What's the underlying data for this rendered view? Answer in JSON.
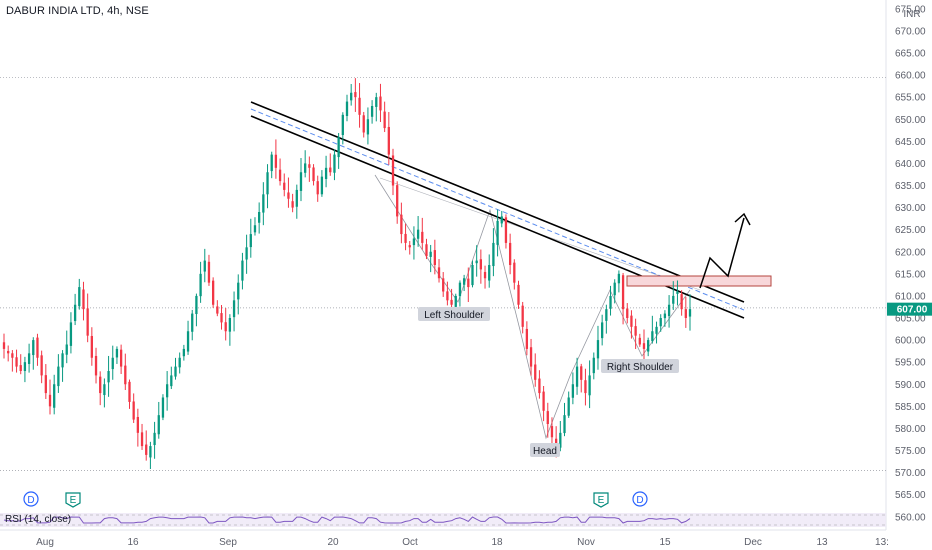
{
  "header": {
    "title": "DABUR INDIA LTD, 4h, NSE"
  },
  "currency": "INR",
  "colors": {
    "up": "#089981",
    "down": "#f23645",
    "last_price_bg": "#089981",
    "rsi_line": "#7e57c2"
  },
  "chart_data": {
    "type": "candlestick",
    "symbol": "DABUR INDIA LTD",
    "interval": "4h",
    "exchange": "NSE",
    "ylim": [
      557,
      677
    ],
    "y_ticks": [
      560,
      565,
      570,
      575,
      580,
      585,
      590,
      595,
      600,
      605,
      610,
      615,
      620,
      625,
      630,
      635,
      640,
      645,
      650,
      655,
      660,
      665,
      670,
      675
    ],
    "x_ticks": [
      "Aug",
      "16",
      "Sep",
      "20",
      "Oct",
      "18",
      "Nov",
      "15",
      "Dec",
      "13",
      "13:"
    ],
    "last_price": "607.00",
    "reference_levels": [
      659.5,
      607.3,
      570.5
    ],
    "closes": [
      598,
      597,
      596,
      594,
      593,
      595,
      597,
      600,
      596,
      592,
      588,
      585,
      590,
      594,
      597,
      599,
      604,
      608,
      612,
      607,
      601,
      596,
      592,
      588,
      590,
      593,
      596,
      598,
      594,
      590,
      586,
      582,
      579,
      576,
      574,
      576,
      579,
      583,
      587,
      590,
      592,
      594,
      596,
      598,
      602,
      606,
      610,
      615,
      618,
      613,
      608,
      606,
      604,
      602,
      605,
      609,
      613,
      618,
      621,
      624,
      626,
      629,
      633,
      638,
      642,
      639,
      636,
      634,
      632,
      630,
      634,
      638,
      640,
      639,
      636,
      633,
      637,
      639,
      638,
      642,
      646,
      651,
      654,
      656,
      655,
      651,
      647,
      650,
      653,
      655,
      652,
      648,
      642,
      635,
      628,
      624,
      622,
      621,
      623,
      625,
      622,
      619,
      620,
      617,
      614,
      611,
      609,
      608,
      610,
      613,
      614,
      612,
      617,
      618,
      616,
      614,
      617,
      622,
      627,
      628,
      622,
      617,
      613,
      608,
      603,
      598,
      594,
      591,
      588,
      584,
      581,
      578,
      576,
      579,
      583,
      587,
      590,
      594,
      591,
      588,
      592,
      596,
      600,
      604,
      607,
      610,
      613,
      615,
      607,
      605,
      603,
      601,
      599,
      598,
      600,
      602,
      603,
      605,
      606,
      608,
      610,
      611,
      607,
      605,
      607
    ],
    "series_labels": [
      "Left Shoulder",
      "Head",
      "Right Shoulder"
    ],
    "event_markers": [
      "D",
      "E",
      "E",
      "D"
    ],
    "rsi": {
      "label": "RSI (14, close)"
    }
  }
}
